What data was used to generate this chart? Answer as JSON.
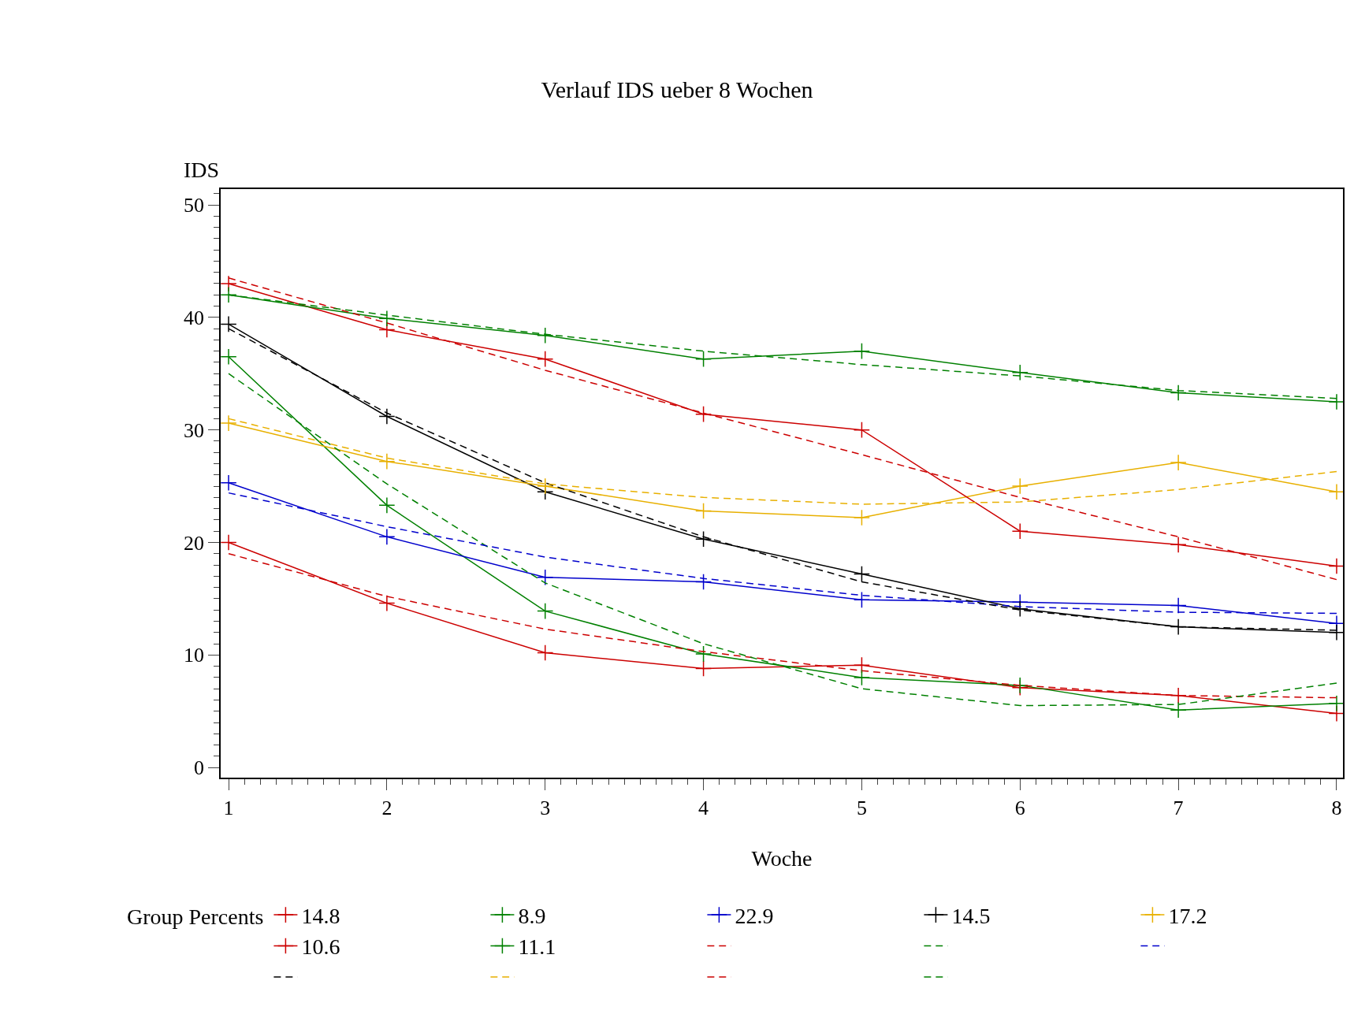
{
  "chart_data": {
    "type": "line",
    "title": "Verlauf IDS ueber 8 Wochen",
    "xlabel": "Woche",
    "ylabel": "IDS",
    "legend_title": "Group Percents",
    "x": [
      1,
      2,
      3,
      4,
      5,
      6,
      7,
      8
    ],
    "xlim": [
      0.95,
      8.04
    ],
    "xticks": [
      1,
      2,
      3,
      4,
      5,
      6,
      7,
      8
    ],
    "ylim": [
      -0.9,
      51.4
    ],
    "yticks": [
      0,
      10,
      20,
      30,
      40,
      50
    ],
    "legend": "bottom",
    "series": [
      {
        "name": "14.8",
        "color": "#cc0000",
        "marker": "cross",
        "line_style": "solid",
        "values": [
          20,
          14.6,
          10.2,
          8.8,
          9.1,
          7.1,
          6.4,
          4.8
        ]
      },
      {
        "name": "8.9",
        "color": "#008000",
        "marker": "cross",
        "line_style": "solid",
        "values": [
          36.5,
          23.3,
          13.9,
          10.1,
          8,
          7.3,
          5.1,
          5.7
        ]
      },
      {
        "name": "22.9",
        "color": "#0000cc",
        "marker": "cross",
        "line_style": "solid",
        "values": [
          25.3,
          20.5,
          16.9,
          16.5,
          14.9,
          14.7,
          14.4,
          12.8
        ]
      },
      {
        "name": "14.5",
        "color": "#000000",
        "marker": "cross",
        "line_style": "solid",
        "values": [
          39.4,
          31.2,
          24.5,
          20.3,
          17.2,
          14.1,
          12.5,
          12
        ]
      },
      {
        "name": "17.2",
        "color": "#e8b000",
        "marker": "cross",
        "line_style": "solid",
        "values": [
          30.6,
          27.2,
          25,
          22.8,
          22.2,
          25,
          27.1,
          24.5
        ]
      },
      {
        "name": "10.6",
        "color": "#cc0000",
        "marker": "cross",
        "line_style": "solid",
        "values": [
          43,
          38.9,
          36.3,
          31.4,
          30,
          21,
          19.8,
          17.9
        ]
      },
      {
        "name": "11.1",
        "color": "#008000",
        "marker": "cross",
        "line_style": "solid",
        "values": [
          42,
          39.9,
          38.4,
          36.3,
          37,
          35.1,
          33.3,
          32.5
        ]
      },
      {
        "color": "#cc0000",
        "marker": "none",
        "line_style": "dashed",
        "values": [
          19,
          15.2,
          12.3,
          10.3,
          8.6,
          7.3,
          6.4,
          6.2
        ]
      },
      {
        "color": "#008000",
        "marker": "none",
        "line_style": "dashed",
        "values": [
          35,
          25.2,
          16.4,
          11,
          7,
          5.5,
          5.6,
          7.5
        ]
      },
      {
        "color": "#0000cc",
        "marker": "none",
        "line_style": "dashed",
        "values": [
          24.4,
          21.4,
          18.7,
          16.8,
          15.3,
          14.3,
          13.8,
          13.7
        ]
      },
      {
        "color": "#000000",
        "marker": "none",
        "line_style": "dashed",
        "values": [
          39,
          31.5,
          25.3,
          20.5,
          16.5,
          14,
          12.5,
          12.2
        ]
      },
      {
        "color": "#e8b000",
        "marker": "none",
        "line_style": "dashed",
        "values": [
          31,
          27.5,
          25.2,
          24,
          23.4,
          23.6,
          24.7,
          26.3
        ]
      },
      {
        "color": "#cc0000",
        "marker": "none",
        "line_style": "dashed",
        "values": [
          43.5,
          39.5,
          35.3,
          31.5,
          27.8,
          24,
          20.5,
          16.7
        ]
      },
      {
        "color": "#008000",
        "marker": "none",
        "line_style": "dashed",
        "values": [
          42,
          40.2,
          38.5,
          37,
          35.8,
          34.8,
          33.5,
          32.8
        ]
      }
    ]
  }
}
